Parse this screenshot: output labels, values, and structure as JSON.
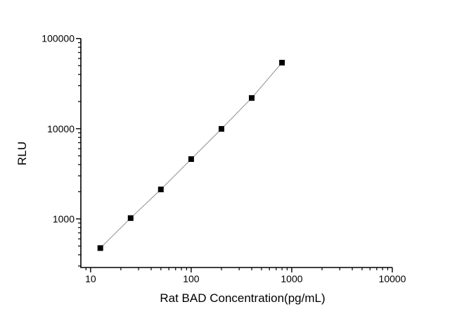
{
  "chart_data": {
    "type": "line",
    "title": "",
    "xlabel": "Rat BAD Concentration(pg/mL)",
    "ylabel": "RLU",
    "x_scale": "log",
    "y_scale": "log",
    "xlim": [
      8,
      10000
    ],
    "ylim": [
      289,
      100000
    ],
    "x": [
      12.5,
      25,
      50,
      100,
      200,
      400,
      800
    ],
    "y": [
      475,
      1020,
      2120,
      4600,
      9950,
      21900,
      54000
    ],
    "marker": "square",
    "marker_size": 8,
    "x_major_ticks": [
      10,
      100,
      1000,
      10000
    ],
    "x_tick_labels": [
      "10",
      "100",
      "1000",
      "10000"
    ],
    "y_major_ticks": [
      1000,
      10000,
      100000
    ],
    "y_tick_labels": [
      "1000",
      "10000",
      "100000"
    ],
    "grid": false,
    "legend": null,
    "colors": {
      "background": "#ffffff",
      "axis": "#000000",
      "text": "#000000",
      "line": "#8f8f8f",
      "marker": "#000000"
    }
  }
}
